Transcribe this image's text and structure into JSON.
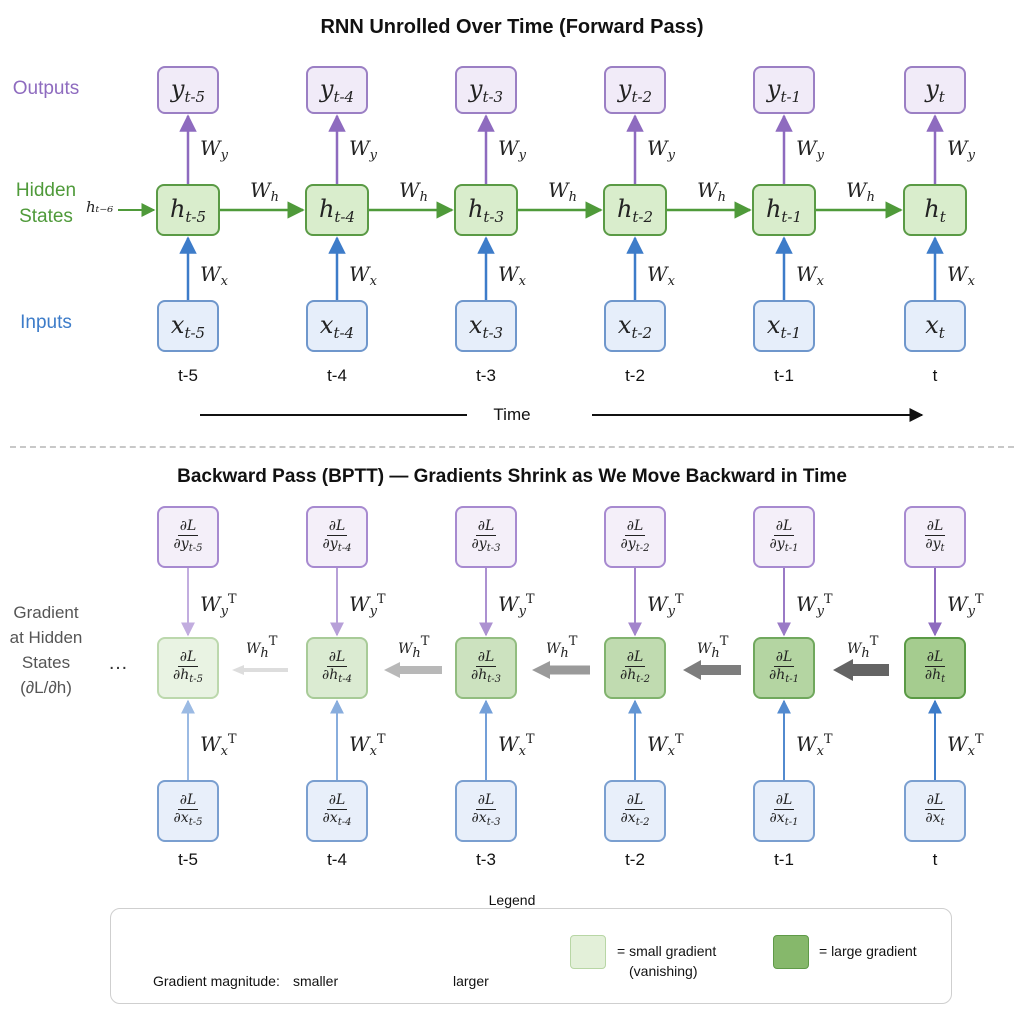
{
  "forward": {
    "title": "RNN Unrolled Over Time (Forward Pass)",
    "row_labels": {
      "outputs": "Outputs",
      "hidden_line1": "Hidden",
      "hidden_line2": "States",
      "inputs": "Inputs"
    },
    "h_prev_label": "hₜ₋₆",
    "steps": [
      {
        "t": "t-5",
        "y": "y",
        "h": "h",
        "x": "x",
        "sub": "t-5"
      },
      {
        "t": "t-4",
        "y": "y",
        "h": "h",
        "x": "x",
        "sub": "t-4"
      },
      {
        "t": "t-3",
        "y": "y",
        "h": "h",
        "x": "x",
        "sub": "t-3"
      },
      {
        "t": "t-2",
        "y": "y",
        "h": "h",
        "x": "x",
        "sub": "t-2"
      },
      {
        "t": "t-1",
        "y": "y",
        "h": "h",
        "x": "x",
        "sub": "t-1"
      },
      {
        "t": "t",
        "y": "y",
        "h": "h",
        "x": "x",
        "sub": "t"
      }
    ],
    "weights": {
      "w": "W",
      "y": "y",
      "h": "h",
      "x": "x"
    },
    "time_label": "Time"
  },
  "backward": {
    "title": "Backward Pass (BPTT) — Gradients Shrink as We Move Backward in Time",
    "row_label_lines": [
      "Gradient",
      "at Hidden",
      "States",
      "(∂L/∂h)"
    ],
    "ellipsis": "…",
    "numerator": "∂L",
    "transpose": "T",
    "steps": [
      {
        "t": "t-5",
        "dy": "∂y",
        "dh": "∂h",
        "dx": "∂x",
        "sub": "t-5",
        "strength": 0.12
      },
      {
        "t": "t-4",
        "dy": "∂y",
        "dh": "∂h",
        "dx": "∂x",
        "sub": "t-4",
        "strength": 0.3
      },
      {
        "t": "t-3",
        "dy": "∂y",
        "dh": "∂h",
        "dx": "∂x",
        "sub": "t-3",
        "strength": 0.5
      },
      {
        "t": "t-2",
        "dy": "∂y",
        "dh": "∂h",
        "dx": "∂x",
        "sub": "t-2",
        "strength": 0.65
      },
      {
        "t": "t-1",
        "dy": "∂y",
        "dh": "∂h",
        "dx": "∂x",
        "sub": "t-1",
        "strength": 0.8
      },
      {
        "t": "t",
        "dy": "∂y",
        "dh": "∂h",
        "dx": "∂x",
        "sub": "t",
        "strength": 1.0
      }
    ]
  },
  "legend": {
    "title": "Legend",
    "magnitude_label": "Gradient magnitude:",
    "smaller": "smaller",
    "larger": "larger",
    "small_line1": "= small gradient",
    "small_line2": "(vanishing)",
    "large": "= large gradient"
  },
  "colors": {
    "output": "#8e6bbf",
    "hidden": "#4f9a3a",
    "input": "#3d7cc9",
    "small_gradient": "#e3f0d9",
    "large_gradient": "#86b86b"
  }
}
